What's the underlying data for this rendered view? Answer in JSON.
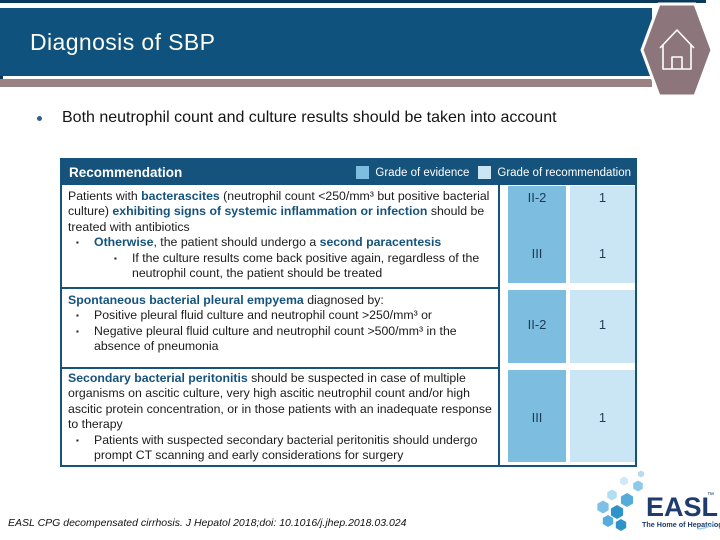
{
  "slide": {
    "title": "Diagnosis of SBP",
    "intro_bullet": "Both neutrophil count and culture results should be taken into account",
    "footer_citation": "EASL CPG decompensated cirrhosis. J Hepatol 2018;doi: 10.1016/j.jhep.2018.03.024"
  },
  "table": {
    "header_label": "Recommendation",
    "legend": [
      {
        "label": "Grade of evidence",
        "color": "#7CBDE0"
      },
      {
        "label": "Grade of recommendation",
        "color": "#CAE5F4"
      }
    ],
    "rows": [
      {
        "lines": [
          {
            "indent": 0,
            "bullet": false,
            "segments": [
              {
                "t": "Patients with ",
                "b": false
              },
              {
                "t": "bacterascites",
                "b": true
              },
              {
                "t": " (neutrophil count <250/mm³ but positive bacterial culture) ",
                "b": false
              },
              {
                "t": "exhibiting signs of systemic inflammation or infection",
                "b": true
              },
              {
                "t": " should be treated with antibiotics",
                "b": false
              }
            ]
          },
          {
            "indent": 1,
            "bullet": true,
            "segments": [
              {
                "t": "Otherwise",
                "b": true
              },
              {
                "t": ", the patient should undergo a ",
                "b": false
              },
              {
                "t": "second paracentesis",
                "b": true
              }
            ]
          },
          {
            "indent": 2,
            "bullet": true,
            "segments": [
              {
                "t": "If the culture results come back positive again, regardless of the neutrophil count, the patient should be treated",
                "b": false
              }
            ]
          }
        ],
        "grades": [
          {
            "evidence": "II-2",
            "recommendation": "1",
            "slot": "s-top"
          },
          {
            "evidence": "III",
            "recommendation": "1",
            "slot": "s-mid"
          }
        ]
      },
      {
        "lines": [
          {
            "indent": 0,
            "bullet": false,
            "segments": [
              {
                "t": "Spontaneous bacterial pleural empyema",
                "b": true
              },
              {
                "t": " diagnosed by:",
                "b": false
              }
            ]
          },
          {
            "indent": 1,
            "bullet": true,
            "segments": [
              {
                "t": "Positive pleural fluid culture and neutrophil count >250/mm³ or",
                "b": false
              }
            ]
          },
          {
            "indent": 1,
            "bullet": true,
            "segments": [
              {
                "t": "Negative pleural fluid culture and neutrophil count >500/mm³ in the absence of pneumonia",
                "b": false
              }
            ]
          }
        ],
        "grades": [
          {
            "evidence": "II-2",
            "recommendation": "1",
            "slot": "s-cen1"
          }
        ]
      },
      {
        "lines": [
          {
            "indent": 0,
            "bullet": false,
            "segments": [
              {
                "t": "Secondary bacterial peritonitis",
                "b": true
              },
              {
                "t": " should be suspected in case of multiple organisms on ascitic culture, very high ascitic neutrophil count and/or high ascitic protein concentration, or in those patients with an inadequate response to therapy",
                "b": false
              }
            ]
          },
          {
            "indent": 1,
            "bullet": true,
            "segments": [
              {
                "t": "Patients with suspected secondary bacterial peritonitis should undergo prompt CT scanning and early considerations for surgery",
                "b": false
              }
            ]
          }
        ],
        "grades": [
          {
            "evidence": "III",
            "recommendation": "1",
            "slot": "s-cen2"
          }
        ]
      }
    ]
  },
  "logo": {
    "name": "EASL",
    "tm": "™",
    "tagline": "The Home of Hepatology."
  },
  "colors": {
    "banner_blue": "#0F527E",
    "table_navy": "#15537C",
    "divider_mauve": "#9B8084",
    "hexagon_mauve": "#8C767B",
    "evidence_blue": "#7CBDE0",
    "recommendation_blue": "#CAE5F4",
    "grade_text": "#1F3B54"
  }
}
